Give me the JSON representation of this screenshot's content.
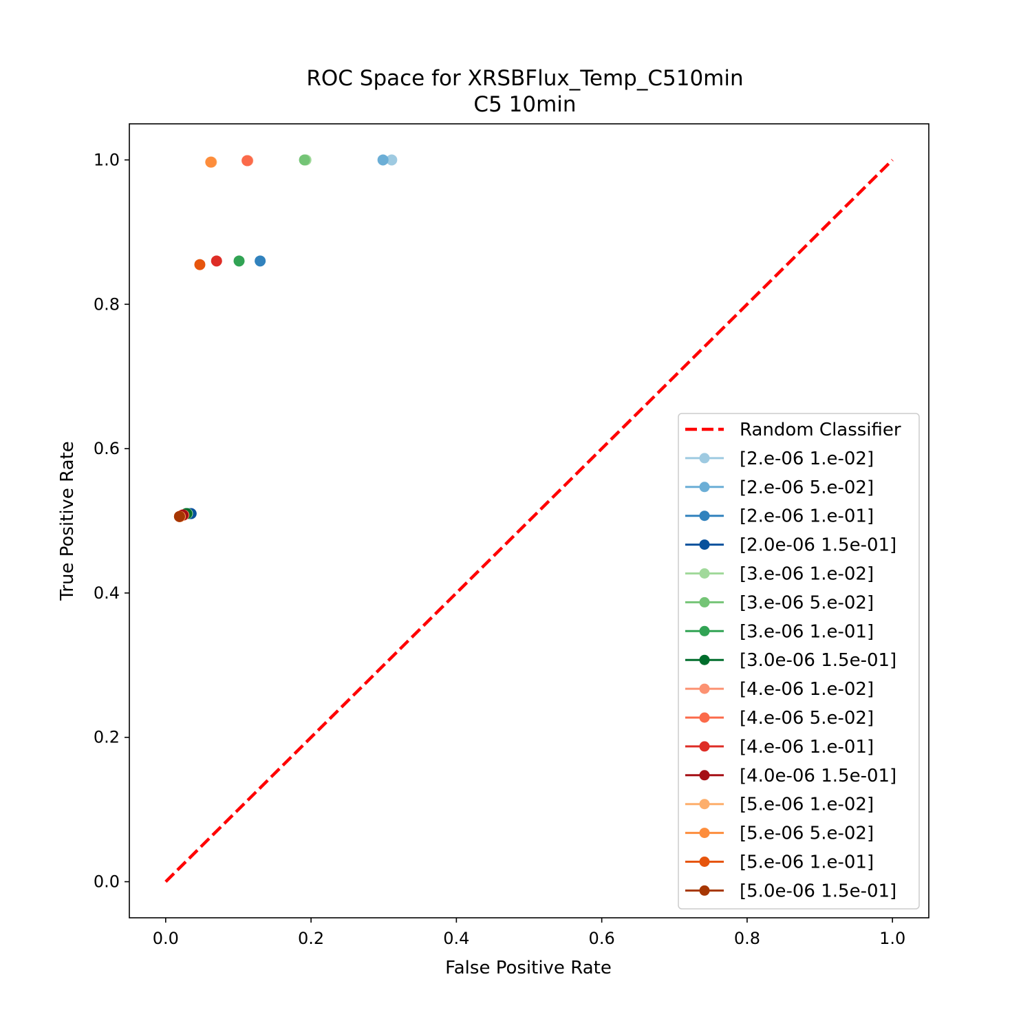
{
  "chart_data": {
    "type": "scatter",
    "title": "ROC Space for XRSBFlux_Temp_C510min",
    "subtitle": "C5 10min",
    "xlabel": "False Positive Rate",
    "ylabel": "True Positive Rate",
    "xlim": [
      -0.05,
      1.05
    ],
    "ylim": [
      -0.05,
      1.05
    ],
    "xticks": [
      "0.0",
      "0.2",
      "0.4",
      "0.6",
      "0.8",
      "1.0"
    ],
    "yticks": [
      "0.0",
      "0.2",
      "0.4",
      "0.6",
      "0.8",
      "1.0"
    ],
    "grid": false,
    "legend_position": "lower-right",
    "reference_line": {
      "name": "Random Classifier",
      "x": [
        0,
        1
      ],
      "y": [
        0,
        1
      ],
      "color": "#ff0000",
      "style": "dashed"
    },
    "series": [
      {
        "name": "[2.e-06 1.e-02]",
        "color": "#9ecae1",
        "points": [
          [
            0.311,
            1.0
          ],
          [
            0.035,
            0.51
          ]
        ]
      },
      {
        "name": "[2.e-06 5.e-02]",
        "color": "#6baed6",
        "points": [
          [
            0.299,
            1.0
          ],
          [
            0.034,
            0.51
          ]
        ]
      },
      {
        "name": "[2.e-06 1.e-01]",
        "color": "#3182bd",
        "points": [
          [
            0.13,
            0.86
          ],
          [
            0.033,
            0.51
          ]
        ]
      },
      {
        "name": "[2.0e-06 1.5e-01]",
        "color": "#08519c",
        "points": [
          [
            0.035,
            0.51
          ]
        ]
      },
      {
        "name": "[3.e-06 1.e-02]",
        "color": "#a1d99b",
        "points": [
          [
            0.193,
            1.0
          ],
          [
            0.03,
            0.51
          ]
        ]
      },
      {
        "name": "[3.e-06 5.e-02]",
        "color": "#74c476",
        "points": [
          [
            0.191,
            1.0
          ],
          [
            0.029,
            0.51
          ]
        ]
      },
      {
        "name": "[3.e-06 1.e-01]",
        "color": "#31a354",
        "points": [
          [
            0.101,
            0.86
          ],
          [
            0.028,
            0.51
          ]
        ]
      },
      {
        "name": "[3.0e-06 1.5e-01]",
        "color": "#006d2c",
        "points": [
          [
            0.029,
            0.51
          ]
        ]
      },
      {
        "name": "[4.e-06 1.e-02]",
        "color": "#fc9272",
        "points": [
          [
            0.113,
            0.999
          ],
          [
            0.025,
            0.508
          ]
        ]
      },
      {
        "name": "[4.e-06 5.e-02]",
        "color": "#fb6a4a",
        "points": [
          [
            0.112,
            0.999
          ],
          [
            0.024,
            0.508
          ]
        ]
      },
      {
        "name": "[4.e-06 1.e-01]",
        "color": "#de2d26",
        "points": [
          [
            0.07,
            0.86
          ],
          [
            0.023,
            0.508
          ]
        ]
      },
      {
        "name": "[4.0e-06 1.5e-01]",
        "color": "#a50f15",
        "points": [
          [
            0.024,
            0.508
          ]
        ]
      },
      {
        "name": "[5.e-06 1.e-02]",
        "color": "#fdae6b",
        "points": [
          [
            0.063,
            0.997
          ],
          [
            0.02,
            0.506
          ]
        ]
      },
      {
        "name": "[5.e-06 5.e-02]",
        "color": "#fd8d3c",
        "points": [
          [
            0.062,
            0.997
          ],
          [
            0.019,
            0.506
          ]
        ]
      },
      {
        "name": "[5.e-06 1.e-01]",
        "color": "#e6550d",
        "points": [
          [
            0.047,
            0.855
          ],
          [
            0.019,
            0.506
          ]
        ]
      },
      {
        "name": "[5.0e-06 1.5e-01]",
        "color": "#a63603",
        "points": [
          [
            0.019,
            0.506
          ]
        ]
      }
    ]
  }
}
